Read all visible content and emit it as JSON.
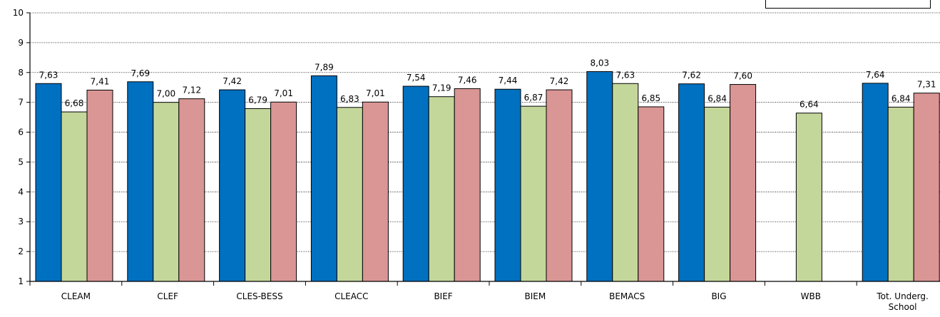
{
  "chart_data": {
    "type": "bar",
    "categories": [
      "CLEAM",
      "CLEF",
      "CLES-BESS",
      "CLEACC",
      "BIEF",
      "BIEM",
      "BEMACS",
      "BIG",
      "WBB",
      "Tot. Underg. School"
    ],
    "category_lines": [
      [
        "CLEAM"
      ],
      [
        "CLEF"
      ],
      [
        "CLES-BESS"
      ],
      [
        "CLEACC"
      ],
      [
        "BIEF"
      ],
      [
        "BIEM"
      ],
      [
        "BEMACS"
      ],
      [
        "BIG"
      ],
      [
        "WBB"
      ],
      [
        "Tot. Underg.",
        "School"
      ]
    ],
    "series": [
      {
        "color": "#0070C0",
        "values": [
          7.63,
          7.69,
          7.42,
          7.89,
          7.54,
          7.44,
          8.03,
          7.62,
          null,
          7.64
        ],
        "labels": [
          "7,63",
          "7,69",
          "7,42",
          "7,89",
          "7,54",
          "7,44",
          "8,03",
          "7,62",
          null,
          "7,64"
        ]
      },
      {
        "color": "#C4D79B",
        "values": [
          6.68,
          7.0,
          6.79,
          6.83,
          7.19,
          6.87,
          7.63,
          6.84,
          6.64,
          6.84
        ],
        "labels": [
          "6,68",
          "7,00",
          "6,79",
          "6,83",
          "7,19",
          "6,87",
          "7,63",
          "6,84",
          "6,64",
          "6,84"
        ]
      },
      {
        "color": "#DA9694",
        "values": [
          7.41,
          7.12,
          7.01,
          7.01,
          7.46,
          7.42,
          6.85,
          7.6,
          null,
          7.31
        ],
        "labels": [
          "7,41",
          "7,12",
          "7,01",
          "7,01",
          "7,46",
          "7,42",
          "6,85",
          "7,60",
          null,
          "7,31"
        ]
      }
    ],
    "yticks": [
      "1",
      "2",
      "3",
      "4",
      "5",
      "6",
      "7",
      "8",
      "9",
      "10"
    ],
    "ylim": [
      1,
      10
    ],
    "title": "",
    "xlabel": "",
    "ylabel": "",
    "grid": "horizontal dotted",
    "legend": "top-right (cropped)"
  }
}
